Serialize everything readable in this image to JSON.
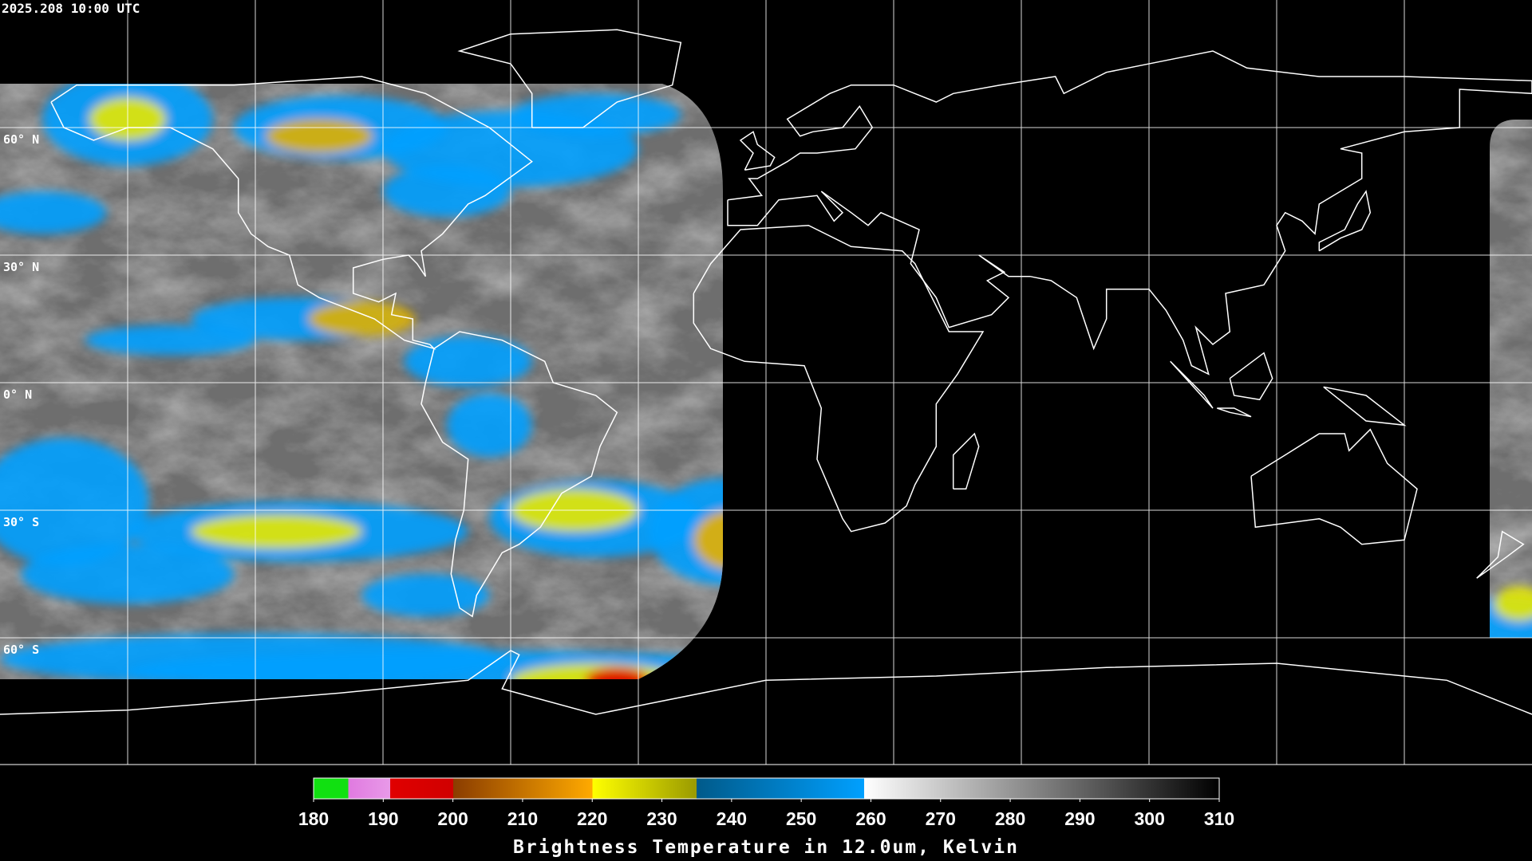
{
  "header": {
    "timestamp": "2025.208 10:00 UTC"
  },
  "map": {
    "lat_labels": [
      "60° N",
      "30° N",
      "0° N",
      "30° S",
      "60° S"
    ]
  },
  "colorbar": {
    "ticks": [
      180,
      190,
      200,
      210,
      220,
      230,
      240,
      250,
      260,
      270,
      280,
      290,
      300,
      310
    ],
    "title": "Brightness Temperature in 12.0um, Kelvin"
  }
}
